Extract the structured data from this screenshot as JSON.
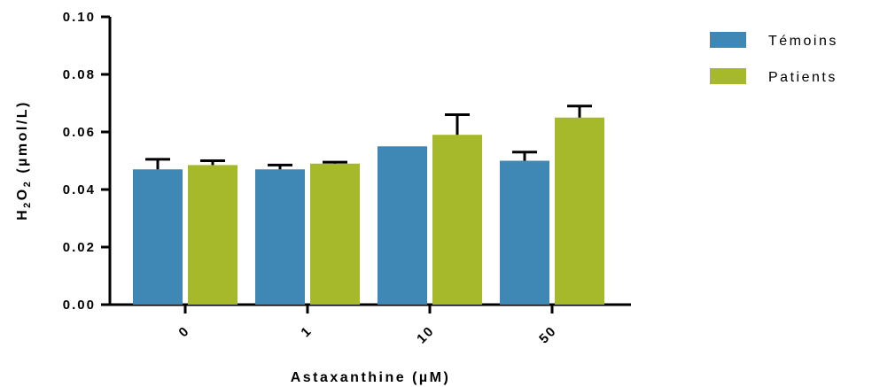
{
  "chart_data": {
    "type": "bar",
    "title": "",
    "xlabel": "Astaxanthine (µM)",
    "ylabel": "H2O2 (µmol/L)",
    "ylabel_parts": {
      "a": "H",
      "sub1": "2",
      "b": "O",
      "sub2": "2",
      "c": " (µmol/L)"
    },
    "categories": [
      "0",
      "1",
      "10",
      "50"
    ],
    "ylim": [
      0,
      0.1
    ],
    "yticks": [
      "0.00",
      "0.02",
      "0.04",
      "0.06",
      "0.08",
      "0.10"
    ],
    "ytick_values": [
      0,
      0.02,
      0.04,
      0.06,
      0.08,
      0.1
    ],
    "grid": false,
    "legend_position": "top-right",
    "series": [
      {
        "name": "Témoins",
        "color": "#3f87b4",
        "values": [
          0.047,
          0.047,
          0.055,
          0.05
        ],
        "errors": [
          0.0035,
          0.0015,
          0,
          0.003
        ]
      },
      {
        "name": "Patients",
        "color": "#a6b92a",
        "values": [
          0.0485,
          0.049,
          0.059,
          0.065
        ],
        "errors": [
          0.0015,
          0.0005,
          0.007,
          0.004
        ]
      }
    ]
  }
}
